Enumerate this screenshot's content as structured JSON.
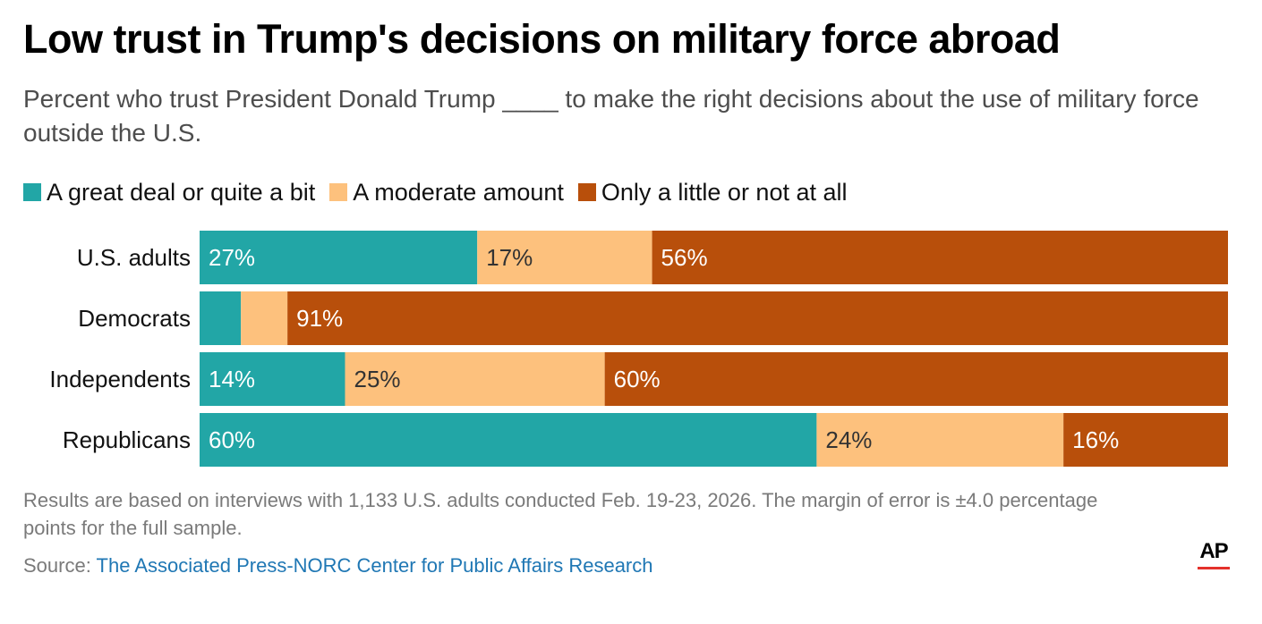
{
  "header": {
    "title": "Low trust in Trump's decisions on military force abroad",
    "subtitle": "Percent who trust President Donald Trump ____ to make the right decisions about the use of military force outside the U.S."
  },
  "legend": [
    {
      "label": "A great deal or quite a bit",
      "color": "#22a6a6"
    },
    {
      "label": "A moderate amount",
      "color": "#fdc17d"
    },
    {
      "label": "Only a little or not at all",
      "color": "#b84f0b"
    }
  ],
  "chart_data": {
    "type": "bar",
    "orientation": "horizontal",
    "stacked": true,
    "title": "Low trust in Trump's decisions on military force abroad",
    "xlim": [
      0,
      100
    ],
    "categories": [
      "U.S. adults",
      "Democrats",
      "Independents",
      "Republicans"
    ],
    "series": [
      {
        "name": "A great deal or quite a bit",
        "color": "#22a6a6",
        "values": [
          27,
          4,
          14,
          60
        ],
        "labels": [
          "27%",
          "",
          "14%",
          "60%"
        ],
        "label_color": "#ffffff"
      },
      {
        "name": "A moderate amount",
        "color": "#fdc17d",
        "values": [
          17,
          4.5,
          25,
          24
        ],
        "labels": [
          "17%",
          "",
          "25%",
          "24%"
        ],
        "label_color": "#333333"
      },
      {
        "name": "Only a little or not at all",
        "color": "#b84f0b",
        "values": [
          56,
          91,
          60,
          16
        ],
        "labels": [
          "56%",
          "91%",
          "60%",
          "16%"
        ],
        "label_color": "#ffffff"
      }
    ]
  },
  "footer": {
    "notes": "Results are based on interviews with 1,133 U.S. adults conducted Feb. 19-23, 2026. The margin of error is ±4.0 percentage points for the full sample.",
    "source_prefix": "Source: ",
    "source_link": "The Associated Press-NORC Center for Public Affairs Research",
    "logo": "AP"
  }
}
